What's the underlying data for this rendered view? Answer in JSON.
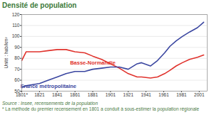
{
  "chart_data": {
    "type": "line",
    "title": "Densité de population",
    "y_label": "Unité : hab/km²",
    "source": "Source : Insee, recensements de la population",
    "note": "* La méthode du premier recensement en 1801 a conduit à sous-estimer la population régionale",
    "x": [
      1801,
      1806,
      1821,
      1831,
      1841,
      1851,
      1861,
      1872,
      1881,
      1891,
      1901,
      1911,
      1921,
      1931,
      1936,
      1946,
      1954,
      1962,
      1968,
      1975,
      1982,
      1990,
      1999,
      2006
    ],
    "series": [
      {
        "name": "Basse-Normandie",
        "color": "#e0322c",
        "values": [
          78,
          86,
          86,
          87,
          88,
          88,
          86,
          85,
          82,
          79,
          75,
          71,
          66,
          63,
          63,
          62,
          63,
          66,
          69,
          73,
          76,
          79,
          81,
          83
        ]
      },
      {
        "name": "France métropolitaine",
        "color": "#3a46a0",
        "values": [
          53,
          55,
          57,
          60,
          63,
          66,
          68,
          68,
          70,
          71,
          72,
          72,
          70,
          75,
          76,
          73,
          78,
          85,
          91,
          96,
          100,
          104,
          108,
          113
        ]
      }
    ],
    "xlim": [
      1801,
      2010
    ],
    "xticks": [
      {
        "value": 1801,
        "label": "1801*"
      },
      1821,
      1841,
      1861,
      1881,
      1901,
      1921,
      1941,
      1961,
      1981,
      2001
    ],
    "ylim": [
      50,
      120
    ],
    "yticks": [
      50,
      60,
      70,
      80,
      90,
      100,
      110,
      120
    ],
    "grid": true
  }
}
